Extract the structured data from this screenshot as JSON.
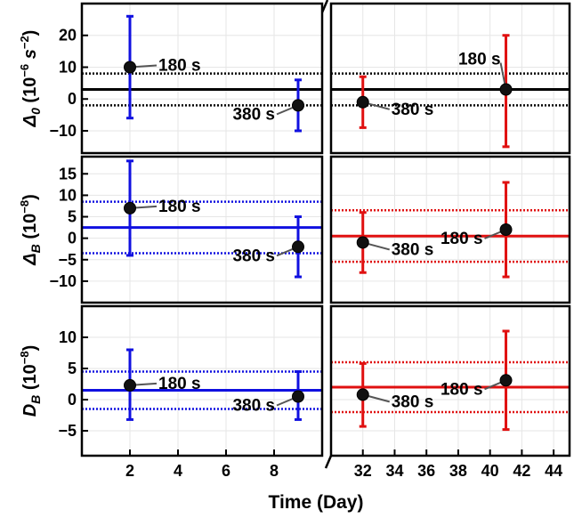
{
  "chart_data": {
    "type": "scatter",
    "xlabel": "Time (Day)",
    "x_segments": [
      {
        "range": [
          0,
          10
        ],
        "ticks": [
          2,
          4,
          6,
          8
        ],
        "color": "#1010e0"
      },
      {
        "range": [
          30,
          45
        ],
        "ticks": [
          32,
          34,
          36,
          38,
          40,
          42,
          44
        ],
        "color": "#e01010"
      }
    ],
    "panels": [
      {
        "id": "delta0",
        "ylabel_base": "Δ",
        "ylabel_sub": "0",
        "ylabel_unit_open": " (10",
        "ylabel_unit_exp": "−6",
        "ylabel_unit_mid": " s",
        "ylabel_unit_exp2": "−2",
        "ylabel_unit_close": ")",
        "ylim": [
          -17,
          30
        ],
        "yticks": [
          -10,
          0,
          10,
          20
        ],
        "mean_line": [
          {
            "value": 3.0,
            "color": "#000000"
          },
          {
            "value": 3.0,
            "color": "#000000"
          }
        ],
        "band": [
          {
            "low": -2.0,
            "high": 8.0,
            "color": "#000000"
          },
          {
            "low": -2.0,
            "high": 8.0,
            "color": "#000000"
          }
        ],
        "points": [
          {
            "segment": 0,
            "x": 2,
            "y": 10,
            "err_low": -6,
            "err_high": 26,
            "label": "180 s",
            "label_side": "right"
          },
          {
            "segment": 0,
            "x": 9,
            "y": -2,
            "err_low": -10,
            "err_high": 6,
            "label": "380 s",
            "label_side": "left"
          },
          {
            "segment": 1,
            "x": 32,
            "y": -1,
            "err_low": -9,
            "err_high": 7,
            "label": "380 s",
            "label_side": "right"
          },
          {
            "segment": 1,
            "x": 41,
            "y": 3,
            "err_low": -15,
            "err_high": 20,
            "label": "180 s",
            "label_side": "above-left"
          }
        ]
      },
      {
        "id": "deltaB",
        "ylabel_base": "Δ",
        "ylabel_sub": "B",
        "ylabel_unit_open": " (10",
        "ylabel_unit_exp": "−8",
        "ylabel_unit_close": ")",
        "ylim": [
          -15,
          19
        ],
        "yticks": [
          -10,
          -5,
          0,
          5,
          10,
          15
        ],
        "mean_line": [
          {
            "value": 2.5,
            "color": "#1010e0"
          },
          {
            "value": 0.5,
            "color": "#e01010"
          }
        ],
        "band": [
          {
            "low": -3.5,
            "high": 8.5,
            "color": "#1010e0"
          },
          {
            "low": -5.5,
            "high": 6.5,
            "color": "#e01010"
          }
        ],
        "points": [
          {
            "segment": 0,
            "x": 2,
            "y": 7,
            "err_low": -4,
            "err_high": 18,
            "label": "180 s",
            "label_side": "right"
          },
          {
            "segment": 0,
            "x": 9,
            "y": -2,
            "err_low": -9,
            "err_high": 5,
            "label": "380 s",
            "label_side": "left"
          },
          {
            "segment": 1,
            "x": 32,
            "y": -1,
            "err_low": -8,
            "err_high": 6,
            "label": "380 s",
            "label_side": "right"
          },
          {
            "segment": 1,
            "x": 41,
            "y": 2,
            "err_low": -9,
            "err_high": 13,
            "label": "180 s",
            "label_side": "left"
          }
        ]
      },
      {
        "id": "DB",
        "ylabel_base": "D",
        "ylabel_sub": "B",
        "ylabel_unit_open": " (10",
        "ylabel_unit_exp": "−8",
        "ylabel_unit_close": ")",
        "ylim": [
          -9,
          15
        ],
        "yticks": [
          -5,
          0,
          5,
          10
        ],
        "mean_line": [
          {
            "value": 1.5,
            "color": "#1010e0"
          },
          {
            "value": 2.0,
            "color": "#e01010"
          }
        ],
        "band": [
          {
            "low": -1.5,
            "high": 4.5,
            "color": "#1010e0"
          },
          {
            "low": -2.0,
            "high": 6.0,
            "color": "#e01010"
          }
        ],
        "points": [
          {
            "segment": 0,
            "x": 2,
            "y": 2.3,
            "err_low": -3.2,
            "err_high": 8,
            "label": "180 s",
            "label_side": "right"
          },
          {
            "segment": 0,
            "x": 9,
            "y": 0.5,
            "err_low": -3.2,
            "err_high": 4.5,
            "label": "380 s",
            "label_side": "left"
          },
          {
            "segment": 1,
            "x": 32,
            "y": 0.8,
            "err_low": -4.3,
            "err_high": 5.8,
            "label": "380 s",
            "label_side": "right"
          },
          {
            "segment": 1,
            "x": 41,
            "y": 3.1,
            "err_low": -4.8,
            "err_high": 11,
            "label": "180 s",
            "label_side": "left"
          }
        ]
      }
    ]
  }
}
